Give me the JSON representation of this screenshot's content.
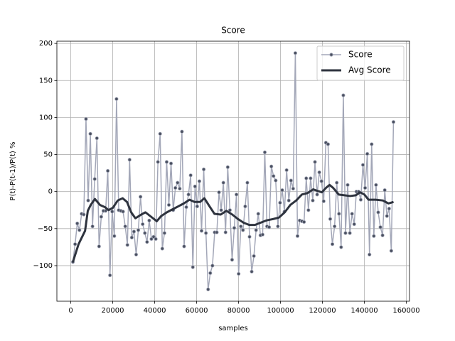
{
  "chart_data": {
    "type": "line",
    "title": "Score",
    "x_label": "samples",
    "y_label": "P(t)-P(t-1)/P(t) %",
    "xlim": [
      -6644,
      161524
    ],
    "ylim": [
      -148,
      203
    ],
    "xticks": [
      0,
      20000,
      40000,
      60000,
      80000,
      100000,
      120000,
      140000,
      160000
    ],
    "yticks": [
      {
        "value": -100,
        "label": "−100"
      },
      {
        "value": -50,
        "label": "−50"
      },
      0,
      50,
      100,
      150,
      200
    ],
    "grid": true,
    "legend": "upper right",
    "series": [
      {
        "name": "Score",
        "color": "#a3a7b8",
        "marker_color": "#4a5060",
        "x": [
          1000,
          2040,
          3080,
          4120,
          5160,
          6200,
          7240,
          8280,
          9320,
          10360,
          11400,
          12440,
          13480,
          14520,
          15560,
          16600,
          17640,
          18680,
          19720,
          20760,
          21800,
          22840,
          23880,
          24920,
          25960,
          27000,
          28040,
          29080,
          30120,
          31160,
          32200,
          33240,
          34280,
          35320,
          36360,
          37400,
          38440,
          39480,
          40520,
          41560,
          42600,
          43640,
          44680,
          45720,
          46760,
          47800,
          48840,
          49880,
          50920,
          51960,
          53000,
          54040,
          55080,
          56120,
          57160,
          58200,
          59240,
          60280,
          61320,
          62360,
          63400,
          64440,
          65480,
          66520,
          67560,
          68600,
          69640,
          70680,
          71720,
          72760,
          73800,
          74840,
          75880,
          76920,
          77960,
          79000,
          80040,
          81080,
          82120,
          83160,
          84200,
          85240,
          86280,
          87320,
          88360,
          89400,
          90440,
          91480,
          92520,
          93560,
          94600,
          95640,
          96680,
          97720,
          98760,
          99800,
          100840,
          101880,
          102920,
          103960,
          105000,
          106040,
          107080,
          108120,
          109160,
          110200,
          111240,
          112280,
          113320,
          114360,
          115400,
          116440,
          117480,
          118520,
          119560,
          120600,
          121640,
          122680,
          123720,
          124760,
          125800,
          126840,
          127880,
          128920,
          129960,
          131000,
          132040,
          133080,
          134120,
          135160,
          136200,
          137240,
          138280,
          139320,
          140360,
          141400,
          142440,
          143480,
          144520,
          145560,
          146600,
          147640,
          148680,
          149720,
          150760,
          151800,
          152840,
          153880
        ],
        "values": [
          -95,
          -71,
          -43,
          -52,
          -30,
          -31,
          98,
          -12,
          78,
          -47,
          17,
          72,
          -74,
          -34,
          -26,
          -26,
          28,
          -113,
          -27,
          -60,
          125,
          -25,
          -26,
          -27,
          -47,
          -72,
          43,
          -62,
          -54,
          -85,
          -52,
          -7,
          -44,
          -56,
          -68,
          -39,
          -64,
          -61,
          -64,
          40,
          78,
          -77,
          -56,
          40,
          -18,
          38,
          -25,
          5,
          12,
          4,
          81,
          -74,
          -21,
          -4,
          22,
          -102,
          7,
          -20,
          14,
          -53,
          30,
          -56,
          -132,
          -110,
          -100,
          -55,
          -55,
          -1,
          -25,
          12,
          -55,
          33,
          -25,
          -92,
          -49,
          -4,
          -111,
          -47,
          -52,
          -20,
          12,
          -61,
          -108,
          -87,
          -52,
          -30,
          -59,
          -58,
          53,
          -47,
          -48,
          34,
          21,
          15,
          -47,
          -15,
          2,
          -27,
          29,
          -12,
          15,
          4,
          187,
          -60,
          -39,
          -40,
          -41,
          18,
          -25,
          18,
          -12,
          40,
          -4,
          26,
          14,
          -13,
          66,
          64,
          -37,
          -71,
          -47,
          12,
          -30,
          -75,
          130,
          -56,
          9,
          -56,
          -30,
          -44,
          0,
          0,
          -11,
          36,
          5,
          51,
          -85,
          64,
          -60,
          9,
          -28,
          -48,
          -59,
          2,
          -33,
          -23,
          -80,
          94
        ]
      },
      {
        "name": "Avg Score",
        "color": "#2e333e",
        "x": [
          1000,
          3700,
          6800,
          8100,
          9500,
          11500,
          13900,
          16300,
          18000,
          20000,
          22400,
          24700,
          26800,
          28800,
          30800,
          33600,
          35600,
          38300,
          41000,
          43100,
          45800,
          47800,
          51200,
          53900,
          56600,
          59000,
          61700,
          63700,
          66400,
          68500,
          71500,
          74200,
          77000,
          79700,
          82400,
          85100,
          87800,
          90500,
          93200,
          96600,
          99300,
          102000,
          104700,
          107500,
          110200,
          112900,
          115600,
          117600,
          119700,
          121700,
          123400,
          125100,
          127800,
          130500,
          133200,
          135900,
          138000,
          140000,
          142000,
          145400,
          148800,
          151500,
          153900
        ],
        "values": [
          -95,
          -71,
          -53,
          -26,
          -18,
          -10,
          -18,
          -21,
          -25,
          -22,
          -12,
          -9,
          -14,
          -28,
          -36,
          -31,
          -28,
          -34,
          -40,
          -33,
          -28,
          -25,
          -20,
          -16,
          -11,
          -14,
          -14,
          -9,
          -21,
          -30,
          -31,
          -26,
          -31,
          -37,
          -42,
          -45,
          -45,
          -42,
          -39,
          -37,
          -35,
          -28,
          -18,
          -12,
          -4,
          -2,
          3,
          1,
          -1,
          5,
          9,
          5,
          -4,
          -5,
          -6,
          -5,
          -1,
          -4,
          -11,
          -11,
          -12,
          -16,
          -14
        ]
      }
    ]
  }
}
